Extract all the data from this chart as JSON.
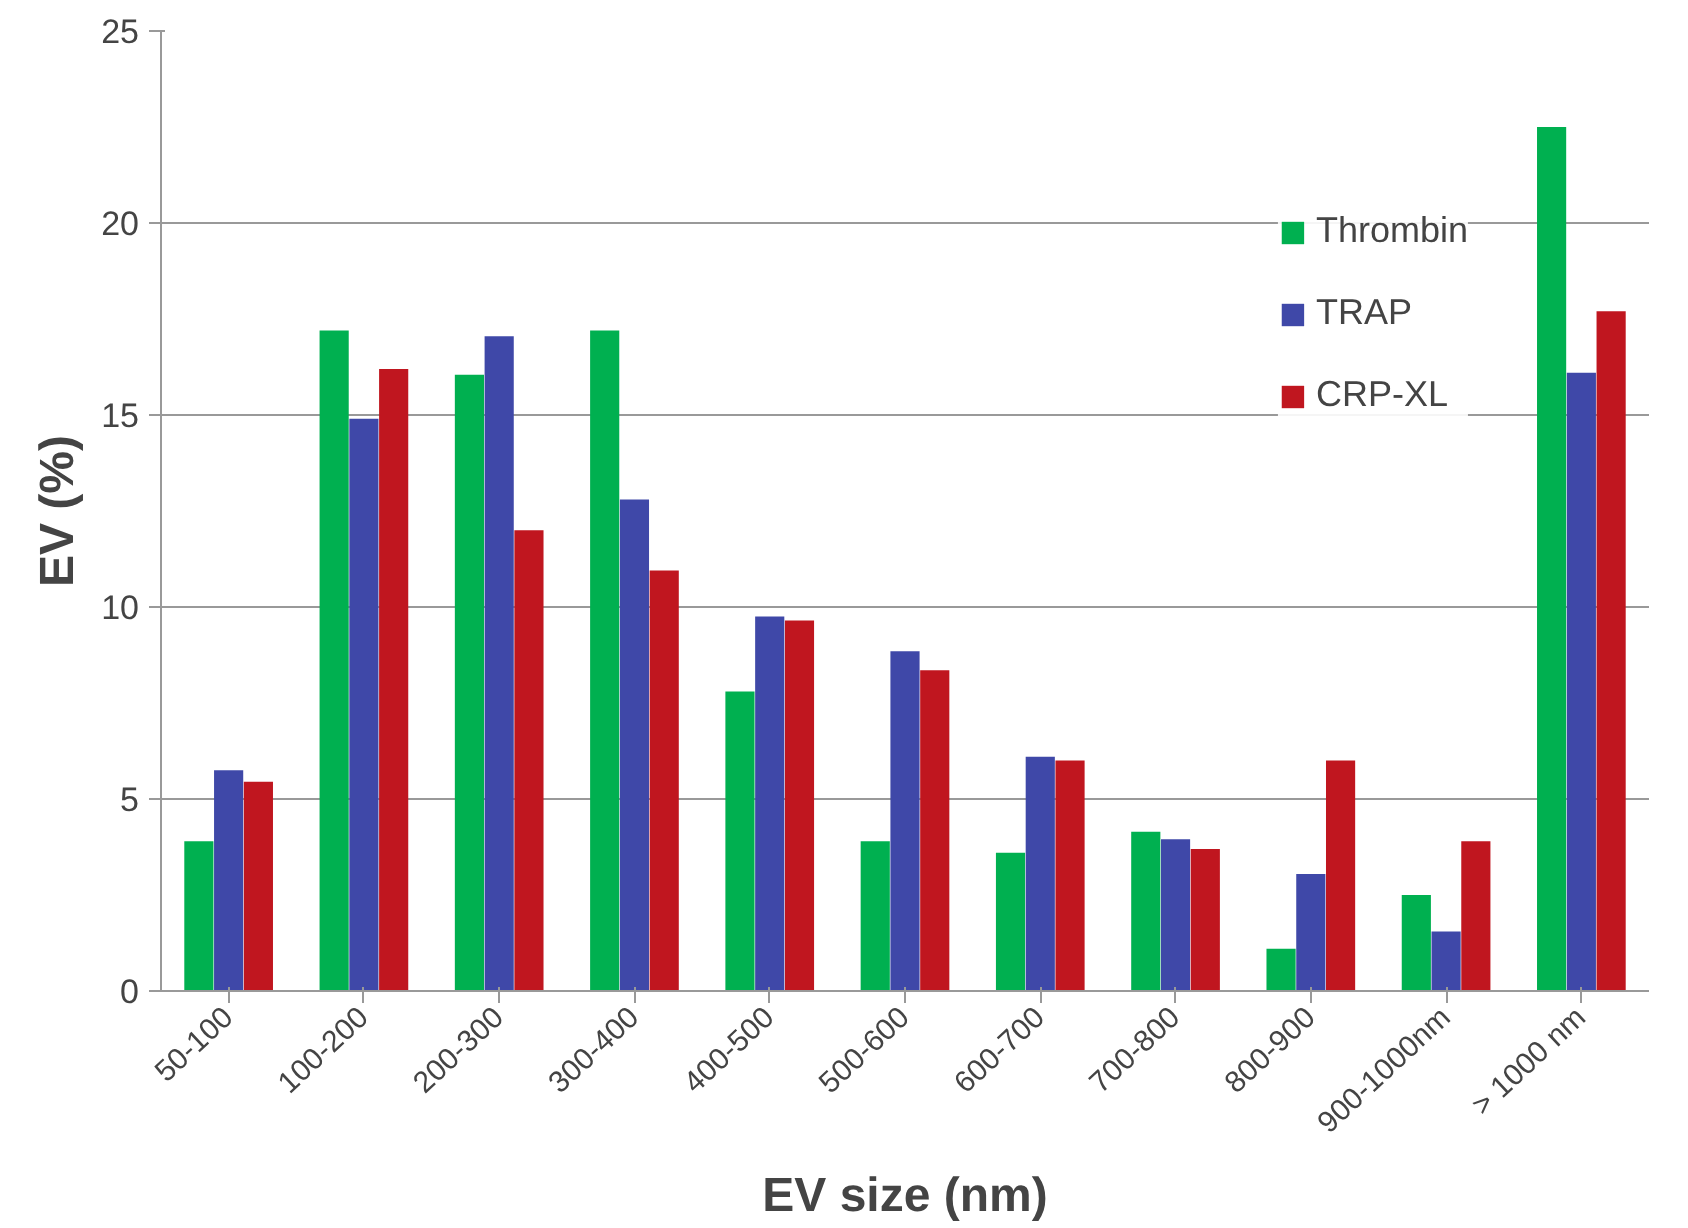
{
  "chart_data": {
    "type": "bar",
    "xlabel": "EV size (nm)",
    "ylabel": "EV (%)",
    "categories": [
      "50-100",
      "100-200",
      "200-300",
      "300-400",
      "400-500",
      "500-600",
      "600-700",
      "700-800",
      "800-900",
      "900-1000nm",
      "> 1000 nm"
    ],
    "series": [
      {
        "name": "Thrombin",
        "color": "#00b050",
        "values": [
          3.9,
          17.2,
          16.05,
          17.2,
          7.8,
          3.9,
          3.6,
          4.15,
          1.1,
          2.5,
          22.5
        ]
      },
      {
        "name": "TRAP",
        "color": "#3f48a8",
        "values": [
          5.75,
          14.9,
          17.05,
          12.8,
          9.75,
          8.85,
          6.1,
          3.95,
          3.05,
          1.55,
          16.1
        ]
      },
      {
        "name": "CRP-XL",
        "color": "#c0161f",
        "values": [
          5.45,
          16.2,
          12.0,
          10.95,
          9.65,
          8.35,
          6.0,
          3.7,
          6.0,
          3.9,
          17.7
        ]
      }
    ],
    "ylim": [
      0,
      25
    ],
    "yticks": [
      0,
      5,
      10,
      15,
      20,
      25
    ],
    "grid": "y",
    "legend": "top right"
  }
}
